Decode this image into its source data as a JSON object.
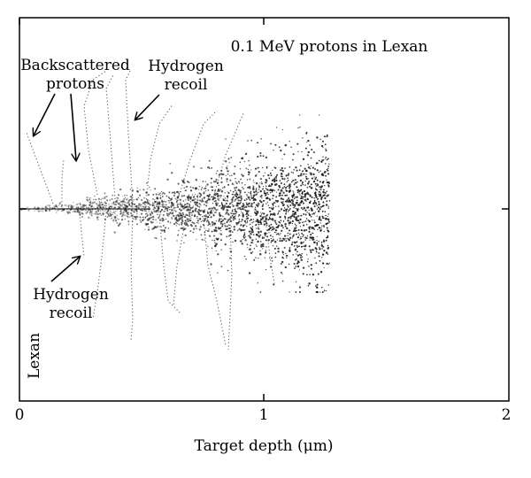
{
  "chart_data": {
    "type": "scatter",
    "title": "0.1 MeV protons in Lexan",
    "xlabel": "Target depth (μm)",
    "ylabel": "",
    "xlim": [
      0,
      2
    ],
    "x_ticks": [
      "0",
      "1",
      "2"
    ],
    "grid": false,
    "legend": "none",
    "material_label": "Lexan",
    "annotations": [
      {
        "text_lines": [
          "Backscattered",
          "protons"
        ],
        "points_to": "backscattered proton tracks near entrance surface"
      },
      {
        "text_lines": [
          "Hydrogen",
          "recoil"
        ],
        "points_to": "recoil track above beam axis"
      },
      {
        "text_lines": [
          "Hydrogen",
          "recoil"
        ],
        "points_to": "recoil track below beam axis"
      }
    ],
    "series": [
      {
        "description_of_marks": "simulated proton trajectories: narrow beam at depth 0 widening into a dense cloud ending near ~1.25 μm"
      }
    ],
    "colors": {
      "tracks": "#1a1a1a",
      "axes": "#000000",
      "background": "#ffffff"
    }
  }
}
